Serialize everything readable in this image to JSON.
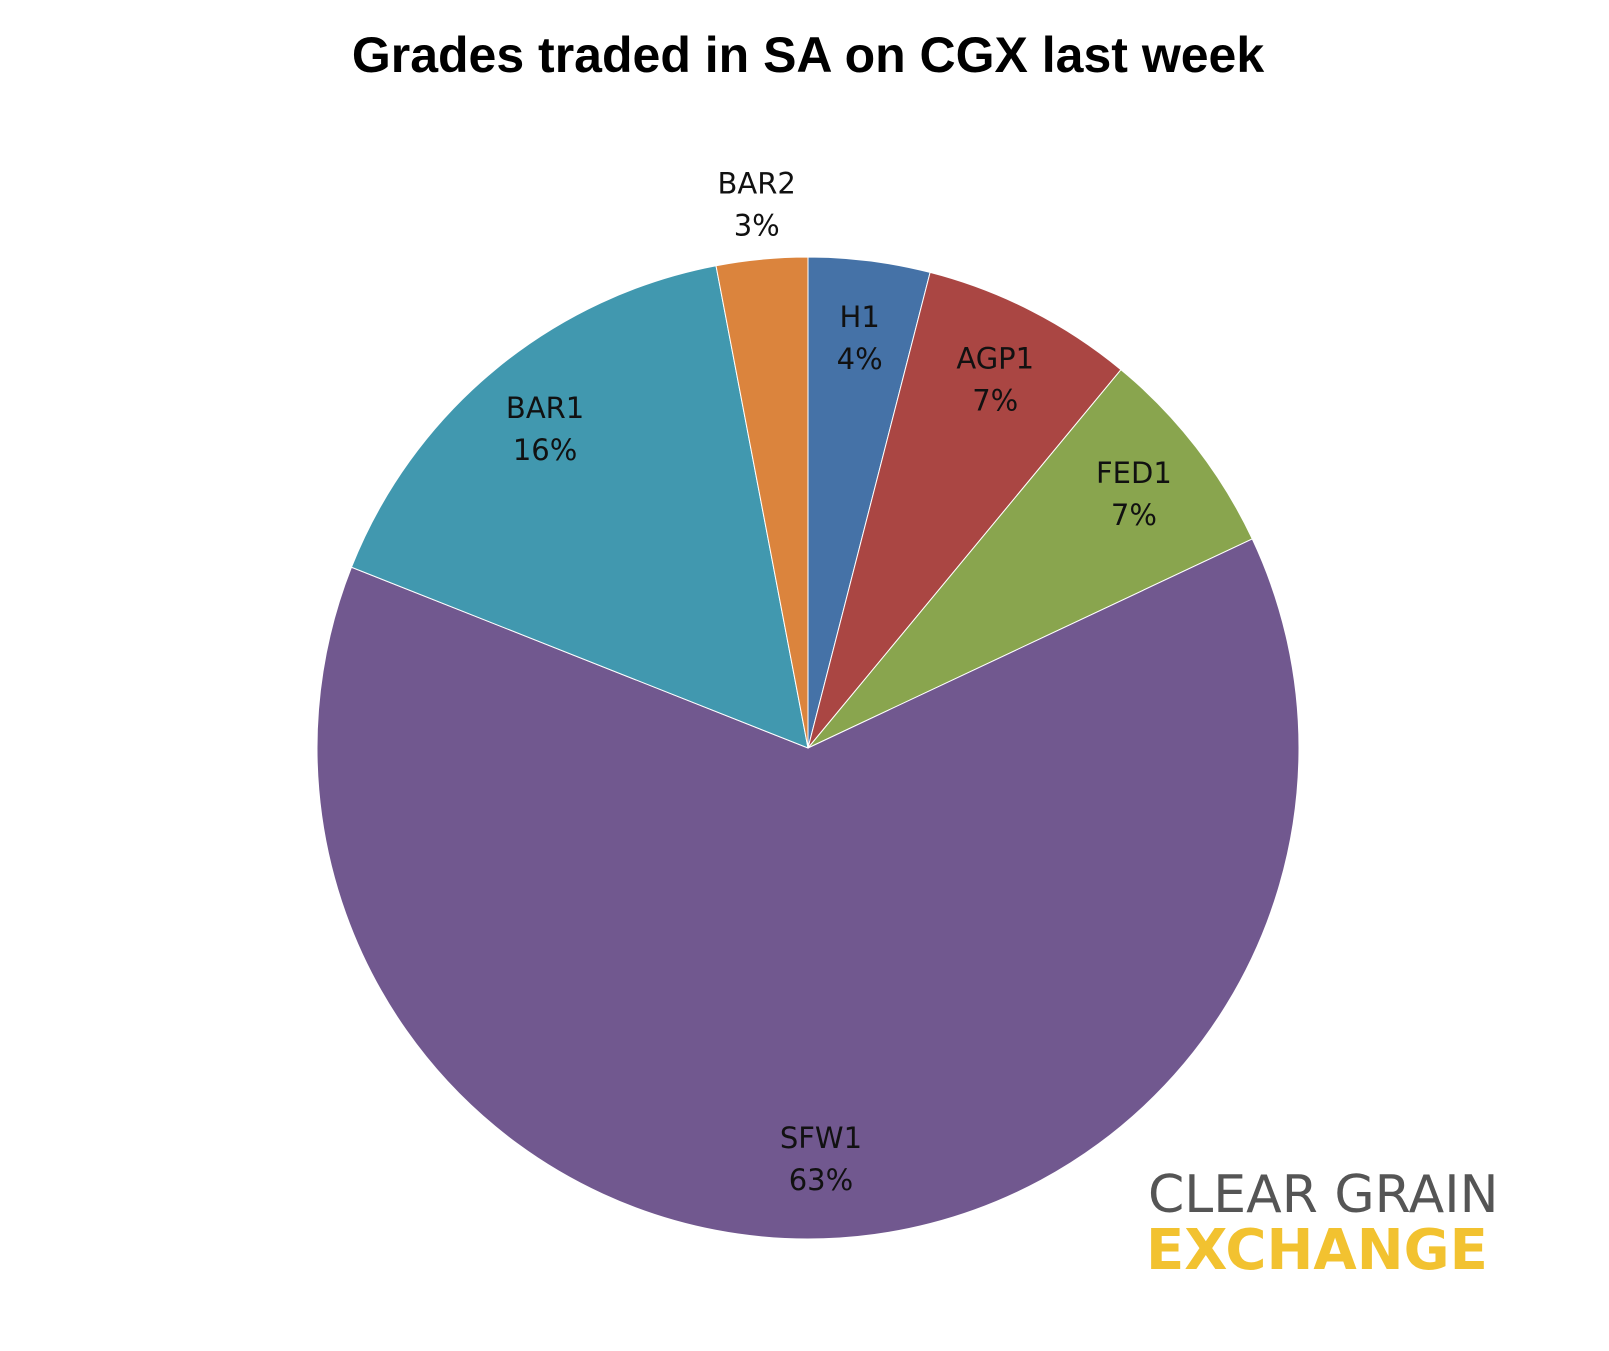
{
  "chart_data": {
    "type": "pie",
    "title": "Grades traded in SA on CGX last week",
    "categories": [
      "H1",
      "AGP1",
      "FED1",
      "SFW1",
      "BAR1",
      "BAR2"
    ],
    "values": [
      4,
      7,
      7,
      63,
      16,
      3
    ],
    "value_labels": [
      "4%",
      "7%",
      "7%",
      "63%",
      "16%",
      "3%"
    ],
    "colors": [
      "#4572a7",
      "#aa4643",
      "#89a54e",
      "#71588f",
      "#4198af",
      "#db843d"
    ]
  },
  "logo": {
    "line1": "CLEAR GRAIN",
    "line2": "EXCHANGE"
  }
}
